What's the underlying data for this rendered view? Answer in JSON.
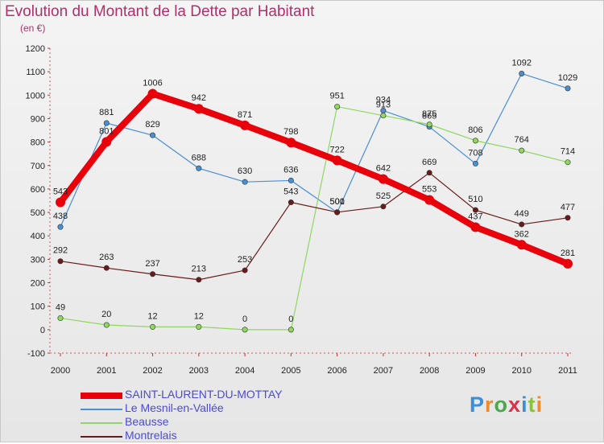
{
  "title": "Evolution du Montant de la Dette par Habitant",
  "unit_label": "(en €)",
  "brand": "Proxiti",
  "brand_colors": [
    "#3a8fd8",
    "#f08a2a",
    "#4aa84a",
    "#d8334a",
    "#3a8fd8",
    "#8ac23a",
    "#f08a2a"
  ],
  "chart_data": {
    "type": "line",
    "title": "Evolution du Montant de la Dette par Habitant",
    "ylabel": "(en €)",
    "x": [
      "2000",
      "2001",
      "2002",
      "2003",
      "2004",
      "2005",
      "2006",
      "2007",
      "2008",
      "2009",
      "2010",
      "2011"
    ],
    "ylim": [
      -100,
      1200
    ],
    "yticks": [
      -100,
      0,
      100,
      200,
      300,
      400,
      500,
      600,
      700,
      800,
      900,
      1000,
      1100,
      1200
    ],
    "grid": false,
    "legend": "bottom-left",
    "series": [
      {
        "name": "SAINT-LAURENT-DU-MOTTAY",
        "color": "#e8000a",
        "values": [
          543,
          801,
          1006,
          942,
          871,
          798,
          722,
          642,
          553,
          437,
          362,
          281
        ]
      },
      {
        "name": "Le Mesnil-en-Vallée",
        "color": "#4a8fd0",
        "values": [
          438,
          881,
          829,
          688,
          630,
          636,
          500,
          934,
          865,
          708,
          1092,
          1029
        ]
      },
      {
        "name": "Beausse",
        "color": "#8ed860",
        "values": [
          49,
          20,
          12,
          12,
          0,
          0,
          951,
          913,
          875,
          806,
          764,
          714
        ]
      },
      {
        "name": "Montrelais",
        "color": "#6a1a1a",
        "values": [
          292,
          263,
          237,
          213,
          253,
          543,
          501,
          525,
          669,
          510,
          449,
          477
        ]
      }
    ]
  }
}
